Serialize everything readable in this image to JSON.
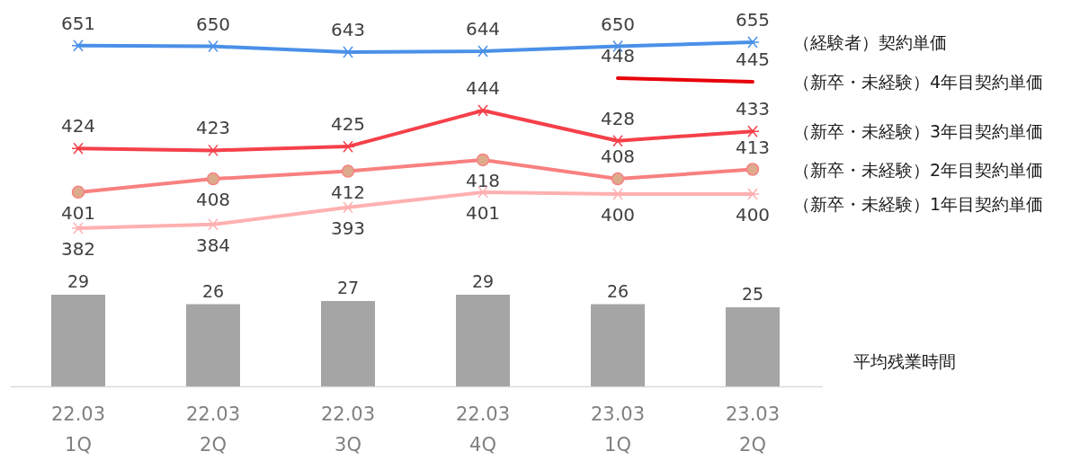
{
  "chart_data": [
    {
      "type": "line",
      "categories": [
        null,
        null,
        null,
        null,
        null,
        null
      ],
      "series": [
        {
          "name": "（経験者）契約単価",
          "marker": "cross",
          "color": "#4a90e8",
          "values": [
            651,
            650,
            643,
            644,
            650,
            655
          ]
        }
      ],
      "tick_labels": false,
      "data_labels": true,
      "legend": "right",
      "line_style": "solid"
    },
    {
      "type": "line",
      "categories": [
        null,
        null,
        null,
        null,
        null,
        null
      ],
      "series": [
        {
          "name": "（新卒・未経験）4年目契約単価",
          "marker": "none",
          "color": "#e8000a",
          "values": [
            null,
            null,
            null,
            null,
            448,
            445
          ]
        }
      ],
      "tick_labels": false,
      "data_labels": true,
      "legend": "right",
      "line_style": "solid"
    },
    {
      "type": "line",
      "categories": [
        null,
        null,
        null,
        null,
        null,
        null
      ],
      "series": [
        {
          "name": "（新卒・未経験）3年目契約単価",
          "marker": "cross",
          "color": "#f5404a",
          "values": [
            424,
            423,
            425,
            444,
            428,
            433
          ]
        },
        {
          "name": "（新卒・未経験）2年目契約単価",
          "marker": "circle",
          "color": "#f88080",
          "values": [
            401,
            408,
            412,
            418,
            408,
            413
          ]
        },
        {
          "name": "（新卒・未経験）1年目契約単価",
          "marker": "cross",
          "color": "#ffb0b0",
          "values": [
            382,
            384,
            393,
            401,
            400,
            400
          ]
        }
      ],
      "tick_labels": false,
      "data_labels": true,
      "legend": "right",
      "line_style": "solid"
    },
    {
      "type": "bar",
      "categories": [
        "22.03\n1Q",
        "22.03\n2Q",
        "22.03\n3Q",
        "22.03\n4Q",
        "23.03\n1Q",
        "23.03\n2Q"
      ],
      "series": [
        {
          "name": "平均残業時間",
          "color": "#a5a5a5",
          "values": [
            29,
            26,
            27,
            29,
            26,
            25
          ]
        }
      ],
      "tick_labels": "x",
      "data_labels": true,
      "legend": "right"
    }
  ]
}
